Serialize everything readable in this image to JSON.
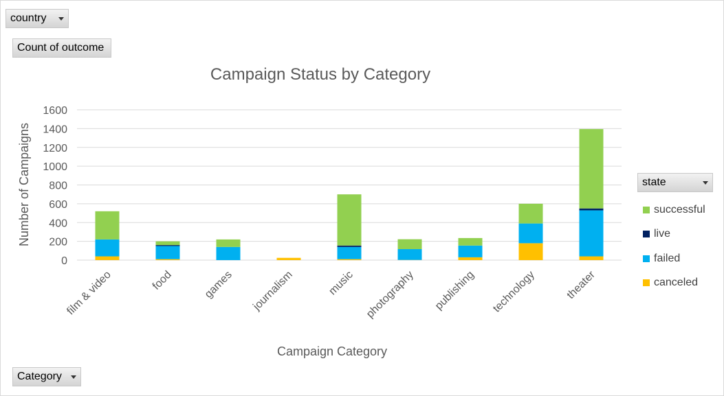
{
  "filters": {
    "country_label": "country",
    "value_label": "Count of outcome",
    "category_label": "Category",
    "state_label": "state"
  },
  "chart_data": {
    "type": "bar",
    "stacked": true,
    "title": "Campaign Status by Category",
    "xlabel": "Campaign Category",
    "ylabel": "Number of Campaigns",
    "ylim": [
      0,
      1600
    ],
    "yticks": [
      "0",
      "200",
      "400",
      "600",
      "800",
      "1000",
      "1200",
      "1400",
      "1600"
    ],
    "grid": true,
    "legend_position": "right",
    "categories": [
      "film & video",
      "food",
      "games",
      "journalism",
      "music",
      "photography",
      "publishing",
      "technology",
      "theater"
    ],
    "series": [
      {
        "name": "canceled",
        "color": "#ffc000",
        "values": [
          40,
          10,
          0,
          24,
          10,
          2,
          30,
          180,
          40
        ]
      },
      {
        "name": "failed",
        "color": "#00b0f0",
        "values": [
          180,
          140,
          140,
          0,
          130,
          115,
          125,
          210,
          490
        ]
      },
      {
        "name": "live",
        "color": "#002060",
        "values": [
          0,
          10,
          0,
          0,
          15,
          0,
          0,
          0,
          20
        ]
      },
      {
        "name": "successful",
        "color": "#92d050",
        "values": [
          300,
          40,
          80,
          0,
          545,
          105,
          80,
          210,
          845
        ]
      }
    ],
    "legend_order": [
      "successful",
      "live",
      "failed",
      "canceled"
    ]
  }
}
